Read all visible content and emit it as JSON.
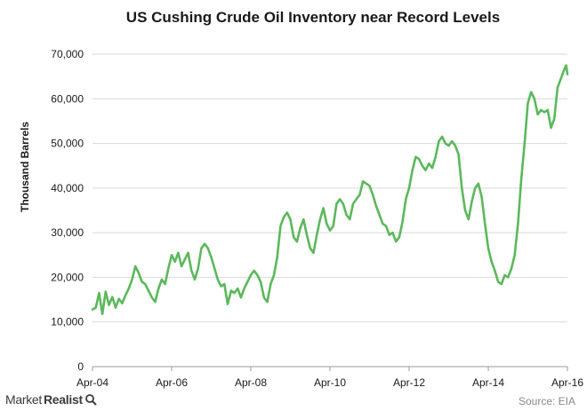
{
  "chart_data": {
    "type": "line",
    "title": "US Cushing Crude Oil Inventory near Record Levels",
    "ylabel": "Thousand Barrels",
    "xlabel": "",
    "source": "Source: EIA",
    "ylim": [
      0,
      70000
    ],
    "xlim": [
      "2004-04",
      "2016-04"
    ],
    "y_ticks": [
      "0",
      "10,000",
      "20,000",
      "30,000",
      "40,000",
      "50,000",
      "60,000",
      "70,000"
    ],
    "x_ticks": [
      "Apr-04",
      "Apr-06",
      "Apr-08",
      "Apr-10",
      "Apr-12",
      "Apr-14",
      "Apr-16"
    ],
    "grid": true,
    "legend": "none",
    "series": [
      {
        "color": "#5cb85c",
        "points": [
          [
            "2004-04",
            12800
          ],
          [
            "2004-05",
            13200
          ],
          [
            "2004-06",
            16500
          ],
          [
            "2004-07",
            11800
          ],
          [
            "2004-08",
            16800
          ],
          [
            "2004-09",
            13800
          ],
          [
            "2004-10",
            15600
          ],
          [
            "2004-11",
            13200
          ],
          [
            "2004-12",
            15200
          ],
          [
            "2005-01",
            14200
          ],
          [
            "2005-02",
            16000
          ],
          [
            "2005-03",
            17500
          ],
          [
            "2005-04",
            19500
          ],
          [
            "2005-05",
            22500
          ],
          [
            "2005-06",
            21000
          ],
          [
            "2005-07",
            19000
          ],
          [
            "2005-08",
            18500
          ],
          [
            "2005-09",
            17000
          ],
          [
            "2005-10",
            15500
          ],
          [
            "2005-11",
            14500
          ],
          [
            "2005-12",
            17500
          ],
          [
            "2006-01",
            19500
          ],
          [
            "2006-02",
            18500
          ],
          [
            "2006-03",
            22000
          ],
          [
            "2006-04",
            25000
          ],
          [
            "2006-05",
            23500
          ],
          [
            "2006-06",
            25500
          ],
          [
            "2006-07",
            22500
          ],
          [
            "2006-08",
            24000
          ],
          [
            "2006-09",
            25500
          ],
          [
            "2006-10",
            21500
          ],
          [
            "2006-11",
            19500
          ],
          [
            "2006-12",
            22000
          ],
          [
            "2007-01",
            26500
          ],
          [
            "2007-02",
            27500
          ],
          [
            "2007-03",
            26500
          ],
          [
            "2007-04",
            24500
          ],
          [
            "2007-05",
            22000
          ],
          [
            "2007-06",
            19500
          ],
          [
            "2007-07",
            18000
          ],
          [
            "2007-08",
            18500
          ],
          [
            "2007-09",
            14000
          ],
          [
            "2007-10",
            17000
          ],
          [
            "2007-11",
            16500
          ],
          [
            "2007-12",
            17500
          ],
          [
            "2008-01",
            15500
          ],
          [
            "2008-02",
            17500
          ],
          [
            "2008-03",
            19000
          ],
          [
            "2008-04",
            20500
          ],
          [
            "2008-05",
            21500
          ],
          [
            "2008-06",
            20500
          ],
          [
            "2008-07",
            19000
          ],
          [
            "2008-08",
            15500
          ],
          [
            "2008-09",
            14500
          ],
          [
            "2008-10",
            18500
          ],
          [
            "2008-11",
            20500
          ],
          [
            "2008-12",
            24500
          ],
          [
            "2009-01",
            31500
          ],
          [
            "2009-02",
            33500
          ],
          [
            "2009-03",
            34500
          ],
          [
            "2009-04",
            33000
          ],
          [
            "2009-05",
            29000
          ],
          [
            "2009-06",
            28000
          ],
          [
            "2009-07",
            31000
          ],
          [
            "2009-08",
            33000
          ],
          [
            "2009-09",
            29500
          ],
          [
            "2009-10",
            26500
          ],
          [
            "2009-11",
            25500
          ],
          [
            "2009-12",
            29500
          ],
          [
            "2010-01",
            33000
          ],
          [
            "2010-02",
            35500
          ],
          [
            "2010-03",
            32000
          ],
          [
            "2010-04",
            30500
          ],
          [
            "2010-05",
            31500
          ],
          [
            "2010-06",
            36500
          ],
          [
            "2010-07",
            37500
          ],
          [
            "2010-08",
            36500
          ],
          [
            "2010-09",
            34000
          ],
          [
            "2010-10",
            33000
          ],
          [
            "2010-11",
            36500
          ],
          [
            "2010-12",
            37500
          ],
          [
            "2011-01",
            38500
          ],
          [
            "2011-02",
            41500
          ],
          [
            "2011-03",
            41000
          ],
          [
            "2011-04",
            40500
          ],
          [
            "2011-05",
            38500
          ],
          [
            "2011-06",
            36000
          ],
          [
            "2011-07",
            34000
          ],
          [
            "2011-08",
            32000
          ],
          [
            "2011-09",
            31500
          ],
          [
            "2011-10",
            29500
          ],
          [
            "2011-11",
            30000
          ],
          [
            "2011-12",
            28000
          ],
          [
            "2012-01",
            29000
          ],
          [
            "2012-02",
            32500
          ],
          [
            "2012-03",
            37500
          ],
          [
            "2012-04",
            40000
          ],
          [
            "2012-05",
            44000
          ],
          [
            "2012-06",
            47000
          ],
          [
            "2012-07",
            46500
          ],
          [
            "2012-08",
            45000
          ],
          [
            "2012-09",
            44000
          ],
          [
            "2012-10",
            45500
          ],
          [
            "2012-11",
            44500
          ],
          [
            "2012-12",
            47000
          ],
          [
            "2013-01",
            50500
          ],
          [
            "2013-02",
            51500
          ],
          [
            "2013-03",
            50000
          ],
          [
            "2013-04",
            49500
          ],
          [
            "2013-05",
            50500
          ],
          [
            "2013-06",
            49500
          ],
          [
            "2013-07",
            47500
          ],
          [
            "2013-08",
            40000
          ],
          [
            "2013-09",
            35000
          ],
          [
            "2013-10",
            33000
          ],
          [
            "2013-11",
            37000
          ],
          [
            "2013-12",
            40000
          ],
          [
            "2014-01",
            41000
          ],
          [
            "2014-02",
            38000
          ],
          [
            "2014-03",
            32000
          ],
          [
            "2014-04",
            26500
          ],
          [
            "2014-05",
            23500
          ],
          [
            "2014-06",
            21500
          ],
          [
            "2014-07",
            19000
          ],
          [
            "2014-08",
            18500
          ],
          [
            "2014-09",
            20500
          ],
          [
            "2014-10",
            20000
          ],
          [
            "2014-11",
            22000
          ],
          [
            "2014-12",
            25000
          ],
          [
            "2015-01",
            32000
          ],
          [
            "2015-02",
            42000
          ],
          [
            "2015-03",
            50000
          ],
          [
            "2015-04",
            59000
          ],
          [
            "2015-05",
            61500
          ],
          [
            "2015-06",
            60000
          ],
          [
            "2015-07",
            56500
          ],
          [
            "2015-08",
            57500
          ],
          [
            "2015-09",
            57000
          ],
          [
            "2015-10",
            57500
          ],
          [
            "2015-11",
            53500
          ],
          [
            "2015-12",
            55500
          ],
          [
            "2016-01",
            62500
          ],
          [
            "2016-02",
            64500
          ],
          [
            "2016-03",
            66500
          ],
          [
            "2016-03-20",
            67500
          ],
          [
            "2016-04",
            65500
          ]
        ]
      }
    ]
  },
  "footer": {
    "brand_name_1": "Market",
    "brand_name_2": "Realist"
  }
}
